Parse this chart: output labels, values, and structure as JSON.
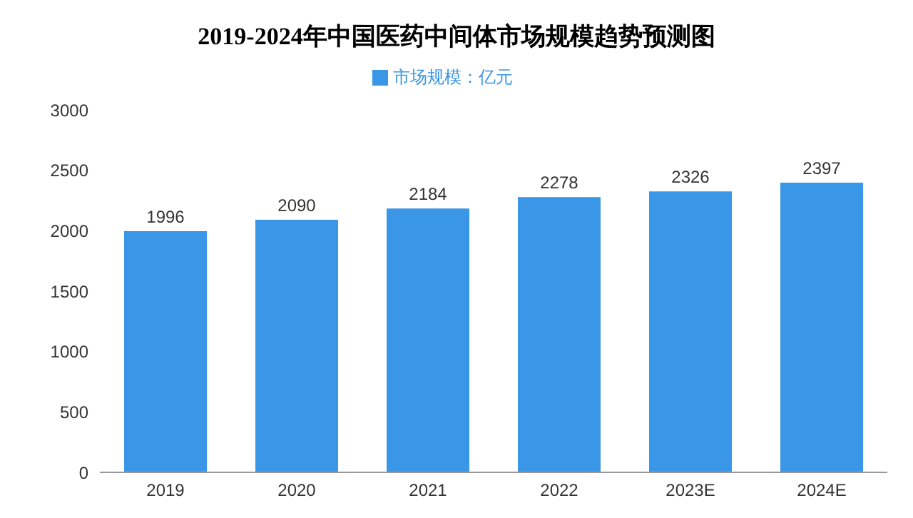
{
  "chart_data": {
    "type": "bar",
    "title": "2019-2024年中国医药中间体市场规模趋势预测图",
    "categories": [
      "2019",
      "2020",
      "2021",
      "2022",
      "2023E",
      "2024E"
    ],
    "series": [
      {
        "name": "市场规模：亿元",
        "color": "#3a96e6",
        "values": [
          1996,
          2090,
          2184,
          2278,
          2326,
          2397
        ]
      }
    ],
    "ylim": [
      0,
      3000
    ],
    "yticks": [
      0,
      500,
      1000,
      1500,
      2000,
      2500,
      3000
    ],
    "data_labels": true,
    "legend": "top",
    "grid": false
  }
}
